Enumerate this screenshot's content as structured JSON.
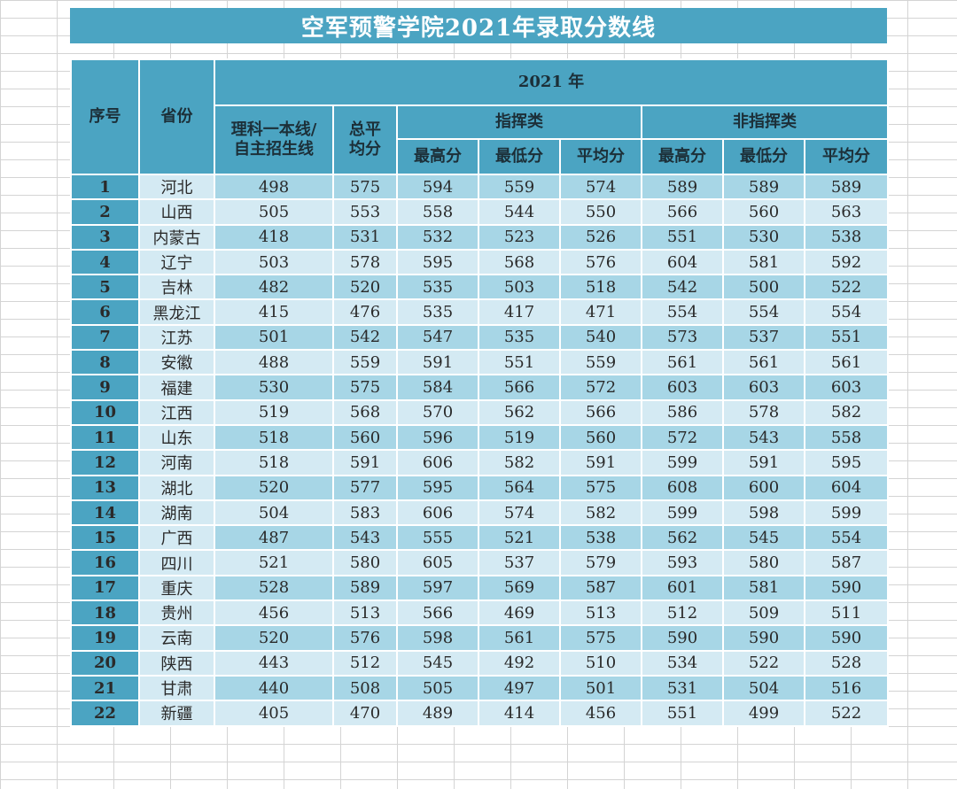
{
  "title": "空军预警学院2021年录取分数线",
  "header": {
    "seq": "序号",
    "province": "省份",
    "year": "2021 年",
    "line_a": "理科一本线/",
    "line_b": "自主招生线",
    "total_a": "总平",
    "total_b": "均分",
    "command": "指挥类",
    "noncommand": "非指挥类",
    "max": "最高分",
    "min": "最低分",
    "avg": "平均分"
  },
  "rows": [
    {
      "seq": "1",
      "province": "河北",
      "line": "498",
      "total": "575",
      "c_max": "594",
      "c_min": "559",
      "c_avg": "574",
      "n_max": "589",
      "n_min": "589",
      "n_avg": "589"
    },
    {
      "seq": "2",
      "province": "山西",
      "line": "505",
      "total": "553",
      "c_max": "558",
      "c_min": "544",
      "c_avg": "550",
      "n_max": "566",
      "n_min": "560",
      "n_avg": "563"
    },
    {
      "seq": "3",
      "province": "内蒙古",
      "line": "418",
      "total": "531",
      "c_max": "532",
      "c_min": "523",
      "c_avg": "526",
      "n_max": "551",
      "n_min": "530",
      "n_avg": "538"
    },
    {
      "seq": "4",
      "province": "辽宁",
      "line": "503",
      "total": "578",
      "c_max": "595",
      "c_min": "568",
      "c_avg": "576",
      "n_max": "604",
      "n_min": "581",
      "n_avg": "592"
    },
    {
      "seq": "5",
      "province": "吉林",
      "line": "482",
      "total": "520",
      "c_max": "535",
      "c_min": "503",
      "c_avg": "518",
      "n_max": "542",
      "n_min": "500",
      "n_avg": "522"
    },
    {
      "seq": "6",
      "province": "黑龙江",
      "line": "415",
      "total": "476",
      "c_max": "535",
      "c_min": "417",
      "c_avg": "471",
      "n_max": "554",
      "n_min": "554",
      "n_avg": "554"
    },
    {
      "seq": "7",
      "province": "江苏",
      "line": "501",
      "total": "542",
      "c_max": "547",
      "c_min": "535",
      "c_avg": "540",
      "n_max": "573",
      "n_min": "537",
      "n_avg": "551"
    },
    {
      "seq": "8",
      "province": "安徽",
      "line": "488",
      "total": "559",
      "c_max": "591",
      "c_min": "551",
      "c_avg": "559",
      "n_max": "561",
      "n_min": "561",
      "n_avg": "561"
    },
    {
      "seq": "9",
      "province": "福建",
      "line": "530",
      "total": "575",
      "c_max": "584",
      "c_min": "566",
      "c_avg": "572",
      "n_max": "603",
      "n_min": "603",
      "n_avg": "603"
    },
    {
      "seq": "10",
      "province": "江西",
      "line": "519",
      "total": "568",
      "c_max": "570",
      "c_min": "562",
      "c_avg": "566",
      "n_max": "586",
      "n_min": "578",
      "n_avg": "582"
    },
    {
      "seq": "11",
      "province": "山东",
      "line": "518",
      "total": "560",
      "c_max": "596",
      "c_min": "519",
      "c_avg": "560",
      "n_max": "572",
      "n_min": "543",
      "n_avg": "558"
    },
    {
      "seq": "12",
      "province": "河南",
      "line": "518",
      "total": "591",
      "c_max": "606",
      "c_min": "582",
      "c_avg": "591",
      "n_max": "599",
      "n_min": "591",
      "n_avg": "595"
    },
    {
      "seq": "13",
      "province": "湖北",
      "line": "520",
      "total": "577",
      "c_max": "595",
      "c_min": "564",
      "c_avg": "575",
      "n_max": "608",
      "n_min": "600",
      "n_avg": "604"
    },
    {
      "seq": "14",
      "province": "湖南",
      "line": "504",
      "total": "583",
      "c_max": "606",
      "c_min": "574",
      "c_avg": "582",
      "n_max": "599",
      "n_min": "598",
      "n_avg": "599"
    },
    {
      "seq": "15",
      "province": "广西",
      "line": "487",
      "total": "543",
      "c_max": "555",
      "c_min": "521",
      "c_avg": "538",
      "n_max": "562",
      "n_min": "545",
      "n_avg": "554"
    },
    {
      "seq": "16",
      "province": "四川",
      "line": "521",
      "total": "580",
      "c_max": "605",
      "c_min": "537",
      "c_avg": "579",
      "n_max": "593",
      "n_min": "580",
      "n_avg": "587"
    },
    {
      "seq": "17",
      "province": "重庆",
      "line": "528",
      "total": "589",
      "c_max": "597",
      "c_min": "569",
      "c_avg": "587",
      "n_max": "601",
      "n_min": "581",
      "n_avg": "590"
    },
    {
      "seq": "18",
      "province": "贵州",
      "line": "456",
      "total": "513",
      "c_max": "566",
      "c_min": "469",
      "c_avg": "513",
      "n_max": "512",
      "n_min": "509",
      "n_avg": "511"
    },
    {
      "seq": "19",
      "province": "云南",
      "line": "520",
      "total": "576",
      "c_max": "598",
      "c_min": "561",
      "c_avg": "575",
      "n_max": "590",
      "n_min": "590",
      "n_avg": "590"
    },
    {
      "seq": "20",
      "province": "陕西",
      "line": "443",
      "total": "512",
      "c_max": "545",
      "c_min": "492",
      "c_avg": "510",
      "n_max": "534",
      "n_min": "522",
      "n_avg": "528"
    },
    {
      "seq": "21",
      "province": "甘肃",
      "line": "440",
      "total": "508",
      "c_max": "505",
      "c_min": "497",
      "c_avg": "501",
      "n_max": "531",
      "n_min": "504",
      "n_avg": "516"
    },
    {
      "seq": "22",
      "province": "新疆",
      "line": "405",
      "total": "470",
      "c_max": "489",
      "c_min": "414",
      "c_avg": "456",
      "n_max": "551",
      "n_min": "499",
      "n_avg": "522"
    }
  ]
}
